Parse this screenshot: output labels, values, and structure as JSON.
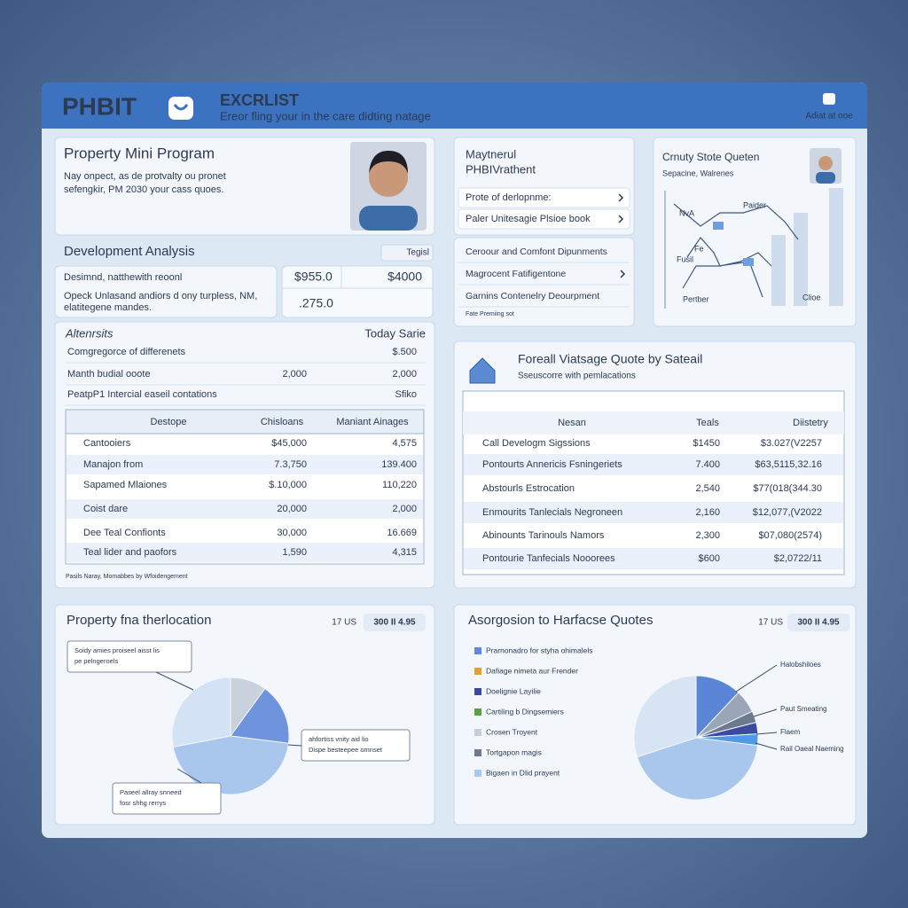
{
  "header": {
    "logo": "PHBIT",
    "title": "EXCRLIST",
    "subtitle": "Ereor fling your in the care didting natage",
    "account": "Adiat at ooe"
  },
  "profile": {
    "title": "Property Mini Program",
    "lines": [
      "Nay onpect, as de protvalty ou pronet",
      "sefengkir, PM 2030 your cass quoes."
    ]
  },
  "analysis": {
    "title": "Development Analysis",
    "tag": "Tegisl",
    "lines": [
      "Desimnd, natthewith reoonl",
      "Opeck Unlasand andiors d ony turpless, NM,",
      "elatitegene mandes."
    ],
    "values": [
      "$955.0",
      "$4000",
      ".275.0"
    ]
  },
  "summary": {
    "header": [
      "Altenrsits",
      "Today Sarie"
    ],
    "rows": [
      [
        "Comgregorce of differenets",
        "",
        "$.500"
      ],
      [
        "Manth budial ooote",
        "2,000",
        "2,000"
      ],
      [
        "PeatpP1 Intercial easeil contations",
        "",
        "Sfiko"
      ]
    ]
  },
  "table1": {
    "columns": [
      "Destope",
      "Chisloans",
      "Maniant Ainages"
    ],
    "rows": [
      [
        "Cantooiers",
        "$45,000",
        "4,575"
      ],
      [
        "Manajon from",
        "7.3,750",
        "139.400"
      ],
      [
        "Sapamed Mlaiones",
        "$.10,000",
        "110,220"
      ],
      [
        "Coist dare",
        "20,000",
        "2,000"
      ],
      [
        "Dee Teal Confionts",
        "30,000",
        "16.669"
      ],
      [
        "Teal lider and paofors",
        "1,590",
        "4,315"
      ]
    ],
    "note": "Pasils Naray, Momabbes by Wfoidengement"
  },
  "menu": {
    "title": [
      "Maytnerul",
      "PHBIVrathent"
    ],
    "items": [
      "Prote of derlopnme:",
      "Paler Unitesagie Plsioe book"
    ]
  },
  "links": {
    "items": [
      "Ceroour and Comfont Dipunments",
      "Magrocent Fatifigentone",
      "Garnins Contenelry Deourpment"
    ],
    "note": "Fate Premiing sot"
  },
  "trend": {
    "title": "Crnuty Stote Queten",
    "subtitle": "Sepacine, Walrenes",
    "labels": [
      "NvA",
      "Paider",
      "Fe",
      "Fusil",
      "Pertber",
      "Clioe"
    ]
  },
  "quotes": {
    "title": "Foreall Viatsage Quote by Sateail",
    "subtitle": "Sseuscorre with pemlacations",
    "columns": [
      "Nesan",
      "Teals",
      "Diistetry"
    ],
    "rows": [
      [
        "Call Develogm Sigssions",
        "$1450",
        "$3.027(V2257"
      ],
      [
        "Pontourts Annericis Fsningeriets",
        "7.400",
        "$63,5115,32.16"
      ],
      [
        "Abstourls Estrocation",
        "2,540",
        "$77(018(344.30"
      ],
      [
        "Enmourits Tanlecials Negroneen",
        "2,160",
        "$12,077,(V2022"
      ],
      [
        "Abinounts Tarinouls Namors",
        "2,300",
        "$07,080(2574)"
      ],
      [
        "Pontourie Tanfecials Nooorees",
        "$600",
        "$2,0722/11"
      ]
    ]
  },
  "pie1": {
    "title": "Property fna therlocation",
    "meta": "17 US",
    "badge": "300 II 4.95",
    "notes": [
      [
        "Soidy amies proiseel aisst lis",
        "pe pelngeroels"
      ],
      [
        "ahfortiss vnity aid lio",
        "Dispe besteepee omnset"
      ],
      [
        "Paseel allray snneed",
        "fosr shhg rerrys"
      ]
    ],
    "slices": [
      {
        "value": 10,
        "color": "#c9d1dc"
      },
      {
        "value": 17,
        "color": "#6f93dc"
      },
      {
        "value": 45,
        "color": "#a9c6ec"
      },
      {
        "value": 28,
        "color": "#d3e2f4"
      }
    ]
  },
  "pie2": {
    "title": "Asorgosion to Harfacse Quotes",
    "meta": "17 US",
    "badge": "300 II 4.95",
    "legend": [
      {
        "name": "Prarnonadro for styha ohimalels",
        "color": "#5b8ae0"
      },
      {
        "name": "Dafiage nimeta aur Frender",
        "color": "#e0a030"
      },
      {
        "name": "Doelignie Layilie",
        "color": "#3b4aa0"
      },
      {
        "name": "Cartiling b Dingsemiers",
        "color": "#5aa040"
      },
      {
        "name": "Crosen Troyent",
        "color": "#c6ced9"
      },
      {
        "name": "Tortgapon magis",
        "color": "#6c7a90"
      },
      {
        "name": "Bigaen in Dlid prayent",
        "color": "#a8c8ec"
      }
    ],
    "callouts": [
      "Halobshiloes",
      "Paut Smeating",
      "Flaem",
      "Rail Oaeal Naeming"
    ],
    "slices": [
      {
        "value": 12,
        "color": "#5b86d8"
      },
      {
        "value": 6,
        "color": "#9aa6b8"
      },
      {
        "value": 3,
        "color": "#6c7a90"
      },
      {
        "value": 3,
        "color": "#3b4aa0"
      },
      {
        "value": 3,
        "color": "#4f9ae8"
      },
      {
        "value": 43,
        "color": "#a9c6ec"
      },
      {
        "value": 30,
        "color": "#d6e4f4"
      }
    ]
  }
}
